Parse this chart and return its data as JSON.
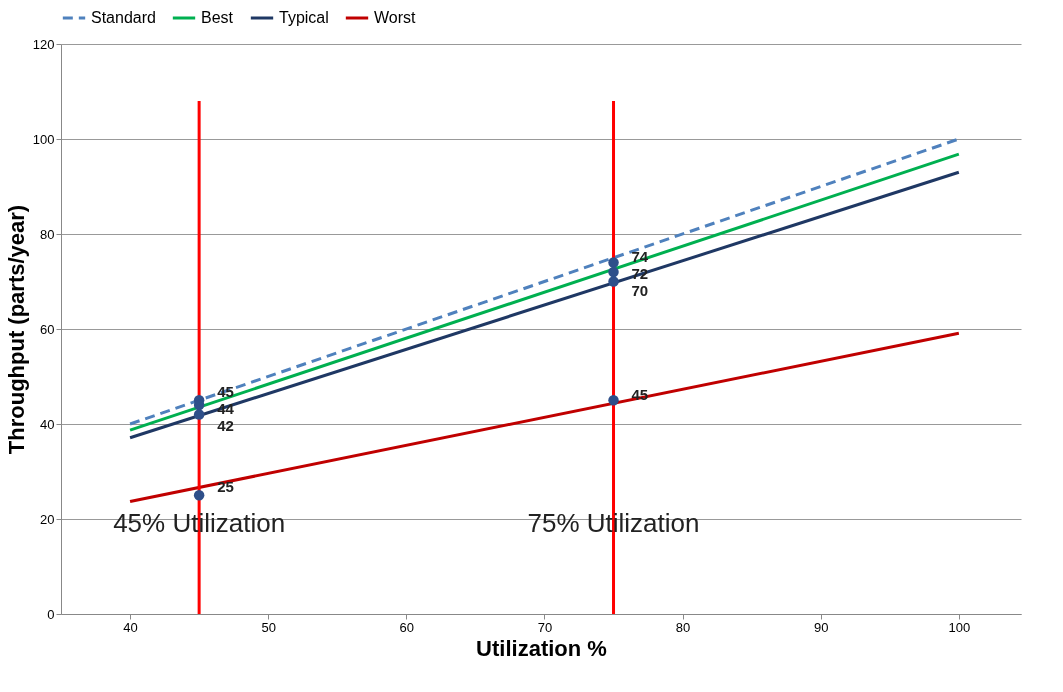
{
  "chart_data": {
    "type": "line",
    "xlabel": "Utilization %",
    "ylabel": "Throughput (parts/year)",
    "xlim": [
      35,
      104.5
    ],
    "ylim": [
      0,
      120
    ],
    "xticks": [
      40,
      50,
      60,
      70,
      80,
      90,
      100
    ],
    "yticks": [
      0,
      20,
      40,
      60,
      80,
      100,
      120
    ],
    "grid": "y",
    "legend": "top",
    "series": [
      {
        "name": "Standard",
        "color": "#4f81bd",
        "line_style": "dashed",
        "x": [
          40,
          100
        ],
        "values": [
          40,
          100
        ]
      },
      {
        "name": "Best",
        "color": "#00b050",
        "line_style": "solid",
        "x": [
          40,
          100
        ],
        "values": [
          38.7,
          96.8
        ]
      },
      {
        "name": "Typical",
        "color": "#1f3864",
        "line_style": "solid",
        "x": [
          40,
          100
        ],
        "values": [
          37.1,
          93
        ]
      },
      {
        "name": "Worst",
        "color": "#c00000",
        "line_style": "solid",
        "x": [
          40,
          100
        ],
        "values": [
          23.7,
          59.1
        ]
      },
      {
        "type": "line",
        "color": "#ff0000",
        "line_style": "solid",
        "x": [
          45,
          45
        ],
        "values": [
          0,
          108
        ]
      },
      {
        "type": "line",
        "color": "#ff0000",
        "line_style": "solid",
        "x": [
          75,
          75
        ],
        "values": [
          0,
          108
        ]
      },
      {
        "type": "scatter",
        "color": "#2e4f8a",
        "marker": "circle",
        "x": [
          45,
          45,
          45,
          45,
          75,
          75,
          75,
          75
        ],
        "values": [
          45,
          44,
          42,
          25,
          74,
          72,
          70,
          45
        ],
        "value_labels": [
          "45",
          "44",
          "42",
          "25",
          "74",
          "72",
          "70",
          "45"
        ]
      }
    ],
    "annotations": [
      {
        "text": "45% Utilization",
        "x": 45,
        "y": 19
      },
      {
        "text": "75% Utilization",
        "x": 75,
        "y": 19
      }
    ]
  }
}
